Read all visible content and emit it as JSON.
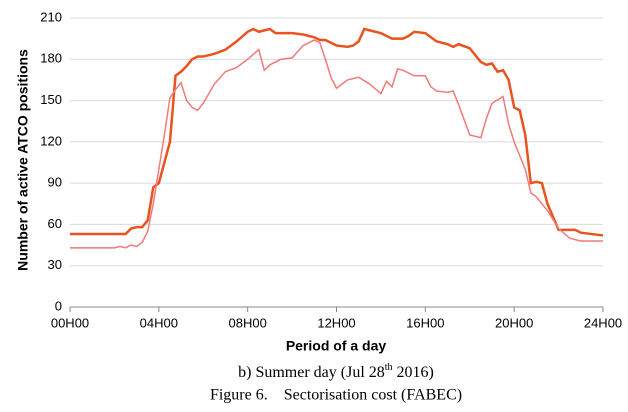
{
  "chart_data": {
    "type": "line",
    "x_label": "Period of a day",
    "y_label": "Number of active ATCO positions",
    "caption_parts": [
      "b) Summer day (Jul 28",
      "th",
      " 2016)"
    ],
    "figure_caption": "Figure 6.    Sectorisation cost (FABEC)",
    "xlim": [
      0,
      24
    ],
    "xticks": [
      {
        "value": 0,
        "label": "00H00"
      },
      {
        "value": 4,
        "label": "04H00"
      },
      {
        "value": 8,
        "label": "08H00"
      },
      {
        "value": 12,
        "label": "12H00"
      },
      {
        "value": 16,
        "label": "16H00"
      },
      {
        "value": 20,
        "label": "20H00"
      },
      {
        "value": 24,
        "label": "24H00"
      }
    ],
    "ylim": [
      0,
      210
    ],
    "yticks": [
      0,
      30,
      60,
      90,
      120,
      150,
      180,
      210
    ],
    "grid": true,
    "series": [
      {
        "color": "#e8531f",
        "width": 2.5,
        "x": [
          0,
          1,
          2,
          2.5,
          2.75,
          3,
          3.25,
          3.5,
          3.75,
          4,
          4.25,
          4.5,
          4.75,
          5,
          5.25,
          5.5,
          5.75,
          6,
          6.5,
          7,
          7.5,
          8,
          8.25,
          8.5,
          8.75,
          9,
          9.25,
          10,
          10.5,
          11,
          11.25,
          11.5,
          12,
          12.5,
          12.75,
          13,
          13.25,
          13.5,
          14,
          14.5,
          15,
          15.25,
          15.5,
          16,
          16.5,
          17,
          17.25,
          17.5,
          18,
          18.5,
          18.75,
          19,
          19.25,
          19.5,
          19.75,
          20,
          20.25,
          20.5,
          20.75,
          21,
          21.25,
          21.5,
          22,
          22.5,
          22.75,
          23,
          23.5,
          24
        ],
        "values": [
          53,
          53,
          53,
          53,
          57,
          58,
          58,
          63,
          87,
          90,
          105,
          120,
          168,
          171,
          175,
          180,
          182,
          182,
          184,
          187,
          193,
          200,
          202,
          200,
          201,
          202,
          199,
          199,
          198,
          196,
          194,
          194,
          190,
          189,
          190,
          193,
          202,
          201,
          199,
          195,
          195,
          197,
          200,
          199,
          193,
          191,
          189,
          191,
          188,
          178,
          176,
          177,
          171,
          172,
          165,
          145,
          143,
          125,
          90,
          91,
          90,
          75,
          56,
          56,
          56,
          54,
          53,
          52
        ]
      },
      {
        "color": "#f27a7a",
        "width": 1.5,
        "x": [
          0,
          1,
          2,
          2.25,
          2.5,
          2.75,
          3,
          3.25,
          3.5,
          3.75,
          4,
          4.25,
          4.5,
          4.75,
          5,
          5.25,
          5.5,
          5.75,
          6,
          6.5,
          7,
          7.5,
          8,
          8.5,
          8.75,
          9,
          9.5,
          10,
          10.5,
          11,
          11.25,
          11.5,
          11.75,
          12,
          12.5,
          13,
          13.5,
          14,
          14.25,
          14.5,
          14.75,
          15,
          15.5,
          16,
          16.25,
          16.5,
          17,
          17.25,
          17.5,
          18,
          18.5,
          18.75,
          19,
          19.5,
          19.75,
          20,
          20.5,
          20.75,
          21,
          21.5,
          22,
          22.5,
          23,
          24
        ],
        "values": [
          43,
          43,
          43,
          44,
          43,
          45,
          44,
          47,
          55,
          75,
          100,
          125,
          152,
          158,
          163,
          150,
          145,
          143,
          148,
          162,
          171,
          174,
          180,
          187,
          172,
          176,
          180,
          181,
          190,
          194,
          192,
          180,
          167,
          159,
          165,
          167,
          162,
          155,
          164,
          160,
          173,
          172,
          168,
          168,
          160,
          157,
          156,
          157,
          147,
          125,
          123,
          137,
          148,
          153,
          133,
          120,
          100,
          83,
          80,
          70,
          57,
          50,
          48,
          48
        ]
      }
    ]
  }
}
